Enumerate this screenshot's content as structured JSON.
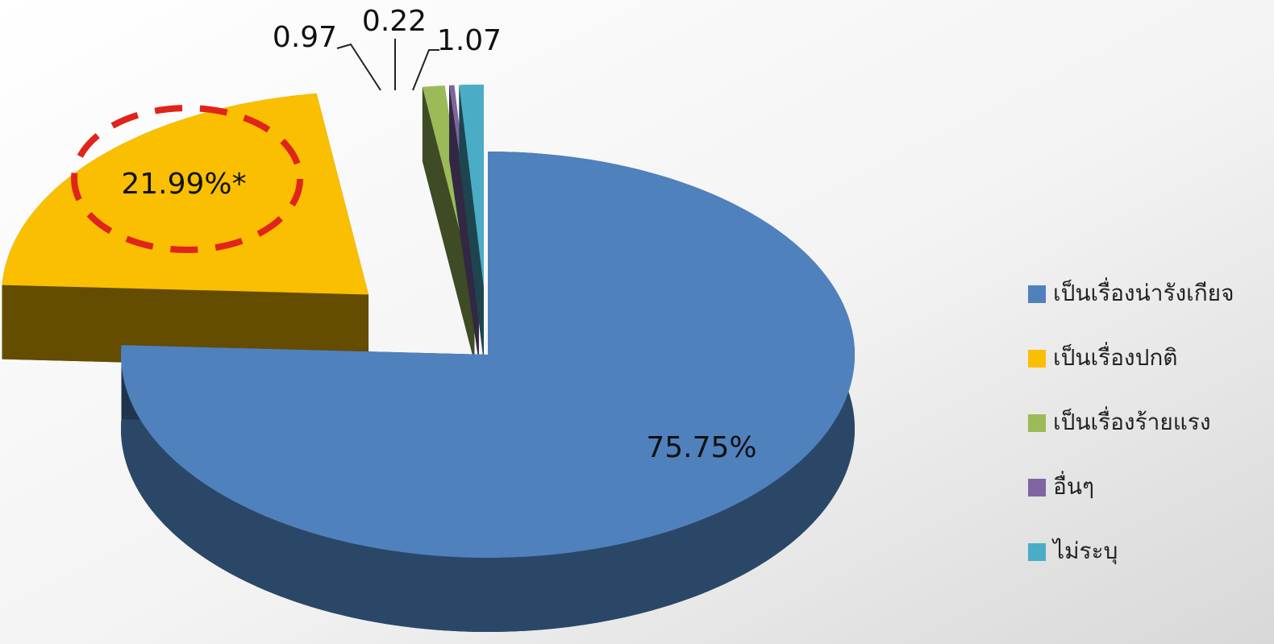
{
  "chart_data": {
    "type": "pie",
    "categories": [
      "เป็นเรื่องน่ารังเกียจ",
      "เป็นเรื่องปกติ",
      "เป็นเรื่องร้ายแรง",
      "อื่นๆ",
      "ไม่ระบุ"
    ],
    "values": [
      75.75,
      21.99,
      0.97,
      0.22,
      1.07
    ],
    "value_labels": [
      "75.75%",
      "21.99%*",
      "0.97",
      "0.22",
      "1.07"
    ],
    "colors": [
      "#4f81bd",
      "#f9bf00",
      "#9bbb59",
      "#8064a2",
      "#4bacc6"
    ],
    "legend": "right"
  }
}
